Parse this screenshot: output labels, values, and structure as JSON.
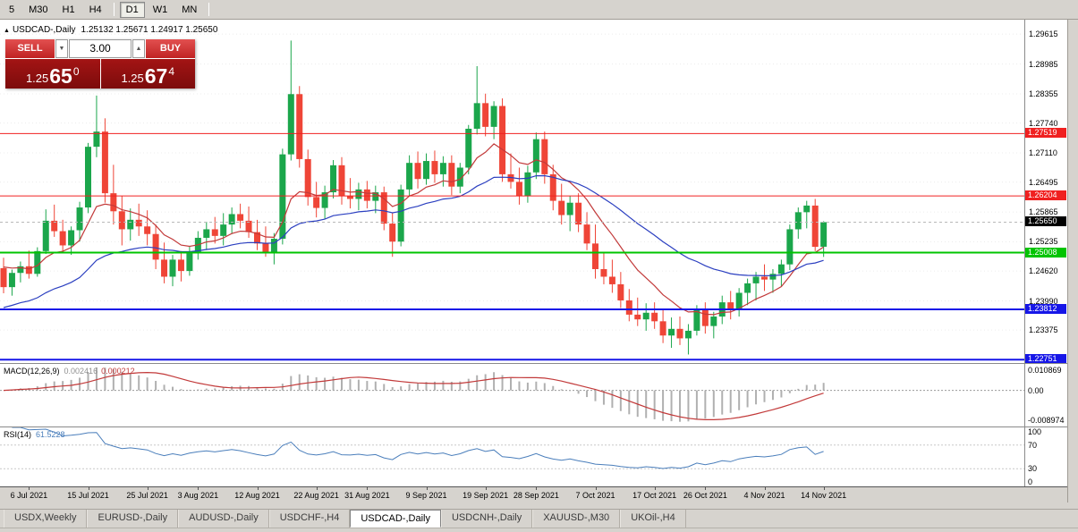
{
  "toolbar": {
    "items": [
      {
        "label": "5"
      },
      {
        "label": "M30"
      },
      {
        "label": "H1"
      },
      {
        "label": "H4"
      },
      {
        "sep": true
      },
      {
        "label": "D1",
        "active": true
      },
      {
        "label": "W1"
      },
      {
        "label": "MN"
      },
      {
        "sep": true
      }
    ]
  },
  "chart": {
    "title_arrow": "▲",
    "symbol_title": "USDCAD-,Daily",
    "ohlc": "1.25132 1.25671 1.24917 1.25650",
    "trade_panel": {
      "sell_label": "SELL",
      "buy_label": "BUY",
      "volume": "3.00",
      "spinner_down": "▼",
      "spinner_up": "▲",
      "sell_price": {
        "prefix": "1.25",
        "big": "65",
        "sup": "0"
      },
      "buy_price": {
        "prefix": "1.25",
        "big": "67",
        "sup": "4"
      }
    }
  },
  "chart_data": {
    "type": "candlestick",
    "symbol": "USDCAD-",
    "timeframe": "Daily",
    "ohlc_current": {
      "open": "1.25132",
      "high": "1.25671",
      "low": "1.24917",
      "close": "1.25650"
    },
    "price_top": 1.2992,
    "price_bottom": 1.2268,
    "colors": {
      "up": "#1ba64b",
      "down": "#ef4537"
    },
    "axis_ticks": [
      "1.29615",
      "1.28985",
      "1.28355",
      "1.27740",
      "1.27110",
      "1.26495",
      "1.25865",
      "1.25235",
      "1.24620",
      "1.23990",
      "1.23375"
    ],
    "levels": [
      {
        "price": 1.27519,
        "badge": "1.27519",
        "color": "#f02020",
        "width": 1
      },
      {
        "price": 1.26204,
        "badge": "1.26204",
        "color": "#f02020",
        "width": 1
      },
      {
        "price": 1.25008,
        "badge": "1.25008",
        "color": "#00c400",
        "width": 2
      },
      {
        "price": 1.23812,
        "badge": "1.23812",
        "color": "#1616e8",
        "width": 2
      },
      {
        "price": 1.22751,
        "badge": "1.22751",
        "color": "#1616e8",
        "width": 2
      }
    ],
    "current_price": "1.25650",
    "ma_fast": {
      "period": 10,
      "init": 1.248,
      "color": "#c23a3a"
    },
    "ma_slow": {
      "period": 30,
      "init": 1.2382,
      "color": "#2b3fc0"
    },
    "macd": {
      "label": "MACD(12,26,9)",
      "value1": "0.002416",
      "value2": "0.000212",
      "axis_top": "0.010869",
      "axis_zero": "0.00",
      "axis_bottom": "-0.008974",
      "histogram_color": "#b0b0b0",
      "signal_color": "#c23a3a"
    },
    "rsi": {
      "label": "RSI(14)",
      "value": "61.5228",
      "axis": [
        "100",
        "70",
        "30",
        "0"
      ],
      "levels": [
        70,
        30
      ],
      "color": "#4a7ebb"
    },
    "time_ticks": [
      {
        "i": 3,
        "label": "6 Jul 2021"
      },
      {
        "i": 10,
        "label": "15 Jul 2021"
      },
      {
        "i": 17,
        "label": "25 Jul 2021"
      },
      {
        "i": 23,
        "label": "3 Aug 2021"
      },
      {
        "i": 30,
        "label": "12 Aug 2021"
      },
      {
        "i": 37,
        "label": "22 Aug 2021"
      },
      {
        "i": 43,
        "label": "31 Aug 2021"
      },
      {
        "i": 50,
        "label": "9 Sep 2021"
      },
      {
        "i": 57,
        "label": "19 Sep 2021"
      },
      {
        "i": 63,
        "label": "28 Sep 2021"
      },
      {
        "i": 70,
        "label": "7 Oct 2021"
      },
      {
        "i": 77,
        "label": "17 Oct 2021"
      },
      {
        "i": 83,
        "label": "26 Oct 2021"
      },
      {
        "i": 90,
        "label": "4 Nov 2021"
      },
      {
        "i": 97,
        "label": "14 Nov 2021"
      }
    ],
    "candles": [
      [
        1.2468,
        1.249,
        1.2415,
        1.2428
      ],
      [
        1.2428,
        1.2465,
        1.241,
        1.2458
      ],
      [
        1.2458,
        1.2482,
        1.2438,
        1.2472
      ],
      [
        1.2472,
        1.2505,
        1.2446,
        1.2456
      ],
      [
        1.2456,
        1.2512,
        1.245,
        1.2504
      ],
      [
        1.2504,
        1.2592,
        1.2498,
        1.2568
      ],
      [
        1.2568,
        1.2602,
        1.2534,
        1.2546
      ],
      [
        1.2546,
        1.257,
        1.2502,
        1.2516
      ],
      [
        1.2516,
        1.2556,
        1.2496,
        1.2548
      ],
      [
        1.2548,
        1.2608,
        1.2524,
        1.2596
      ],
      [
        1.2596,
        1.2732,
        1.2584,
        1.2724
      ],
      [
        1.2724,
        1.2832,
        1.2702,
        1.2756
      ],
      [
        1.2756,
        1.2784,
        1.2606,
        1.2626
      ],
      [
        1.2626,
        1.2686,
        1.256,
        1.2588
      ],
      [
        1.2588,
        1.262,
        1.2516,
        1.255
      ],
      [
        1.255,
        1.2594,
        1.2526,
        1.257
      ],
      [
        1.257,
        1.2604,
        1.2536,
        1.2556
      ],
      [
        1.2556,
        1.259,
        1.2516,
        1.254
      ],
      [
        1.254,
        1.256,
        1.2466,
        1.2486
      ],
      [
        1.2486,
        1.2522,
        1.2436,
        1.245
      ],
      [
        1.245,
        1.2496,
        1.243,
        1.2486
      ],
      [
        1.2486,
        1.2504,
        1.244,
        1.2462
      ],
      [
        1.2462,
        1.2514,
        1.2452,
        1.2502
      ],
      [
        1.2502,
        1.2546,
        1.2486,
        1.2532
      ],
      [
        1.2532,
        1.2566,
        1.2506,
        1.255
      ],
      [
        1.255,
        1.2576,
        1.252,
        1.2536
      ],
      [
        1.2536,
        1.2584,
        1.2516,
        1.256
      ],
      [
        1.256,
        1.2596,
        1.254,
        1.2582
      ],
      [
        1.2582,
        1.2604,
        1.2552,
        1.2568
      ],
      [
        1.2568,
        1.2598,
        1.2532,
        1.2544
      ],
      [
        1.2544,
        1.257,
        1.2506,
        1.252
      ],
      [
        1.252,
        1.2556,
        1.2492,
        1.2502
      ],
      [
        1.2502,
        1.2542,
        1.2476,
        1.253
      ],
      [
        1.253,
        1.272,
        1.2518,
        1.2708
      ],
      [
        1.2708,
        1.2948,
        1.2695,
        1.2835
      ],
      [
        1.2835,
        1.2852,
        1.268,
        1.2698
      ],
      [
        1.2698,
        1.2718,
        1.26,
        1.2618
      ],
      [
        1.2618,
        1.265,
        1.2575,
        1.2595
      ],
      [
        1.2595,
        1.2642,
        1.2572,
        1.2628
      ],
      [
        1.2628,
        1.2696,
        1.2615,
        1.2685
      ],
      [
        1.2685,
        1.2702,
        1.2602,
        1.262
      ],
      [
        1.262,
        1.2658,
        1.2594,
        1.2614
      ],
      [
        1.2614,
        1.2648,
        1.259,
        1.2634
      ],
      [
        1.2634,
        1.2652,
        1.2594,
        1.261
      ],
      [
        1.261,
        1.2642,
        1.2584,
        1.2628
      ],
      [
        1.2628,
        1.264,
        1.2548,
        1.2562
      ],
      [
        1.2562,
        1.2584,
        1.2492,
        1.2524
      ],
      [
        1.2524,
        1.2644,
        1.2514,
        1.2634
      ],
      [
        1.2634,
        1.2706,
        1.262,
        1.269
      ],
      [
        1.269,
        1.2714,
        1.2636,
        1.2656
      ],
      [
        1.2656,
        1.271,
        1.2644,
        1.2694
      ],
      [
        1.2694,
        1.2716,
        1.2648,
        1.2666
      ],
      [
        1.2666,
        1.2704,
        1.264,
        1.269
      ],
      [
        1.269,
        1.2706,
        1.2622,
        1.264
      ],
      [
        1.264,
        1.269,
        1.2626,
        1.268
      ],
      [
        1.268,
        1.277,
        1.2666,
        1.2762
      ],
      [
        1.2762,
        1.2894,
        1.275,
        1.2816
      ],
      [
        1.2816,
        1.2836,
        1.2746,
        1.2766
      ],
      [
        1.2766,
        1.282,
        1.274,
        1.281
      ],
      [
        1.281,
        1.2826,
        1.265,
        1.2666
      ],
      [
        1.2666,
        1.271,
        1.2636,
        1.265
      ],
      [
        1.265,
        1.268,
        1.2602,
        1.262
      ],
      [
        1.262,
        1.2684,
        1.2606,
        1.267
      ],
      [
        1.267,
        1.2754,
        1.2656,
        1.274
      ],
      [
        1.274,
        1.2756,
        1.2646,
        1.2666
      ],
      [
        1.2666,
        1.2686,
        1.259,
        1.261
      ],
      [
        1.261,
        1.2646,
        1.256,
        1.258
      ],
      [
        1.258,
        1.262,
        1.2546,
        1.2606
      ],
      [
        1.2606,
        1.2626,
        1.2544,
        1.256
      ],
      [
        1.256,
        1.2586,
        1.2506,
        1.252
      ],
      [
        1.252,
        1.256,
        1.2446,
        1.2466
      ],
      [
        1.2466,
        1.25,
        1.2434,
        1.245
      ],
      [
        1.245,
        1.2486,
        1.2416,
        1.2434
      ],
      [
        1.2434,
        1.246,
        1.2384,
        1.24
      ],
      [
        1.24,
        1.2424,
        1.2356,
        1.237
      ],
      [
        1.237,
        1.2406,
        1.2346,
        1.236
      ],
      [
        1.236,
        1.2394,
        1.2336,
        1.2374
      ],
      [
        1.2374,
        1.2396,
        1.234,
        1.2356
      ],
      [
        1.2356,
        1.238,
        1.231,
        1.2326
      ],
      [
        1.2326,
        1.2364,
        1.23,
        1.234
      ],
      [
        1.234,
        1.2366,
        1.2306,
        1.232
      ],
      [
        1.232,
        1.235,
        1.2286,
        1.2336
      ],
      [
        1.2336,
        1.239,
        1.2326,
        1.238
      ],
      [
        1.238,
        1.2396,
        1.233,
        1.2346
      ],
      [
        1.2346,
        1.2376,
        1.232,
        1.2366
      ],
      [
        1.2366,
        1.241,
        1.235,
        1.2396
      ],
      [
        1.2396,
        1.242,
        1.236,
        1.238
      ],
      [
        1.238,
        1.2426,
        1.2366,
        1.2416
      ],
      [
        1.2416,
        1.2446,
        1.239,
        1.2436
      ],
      [
        1.2436,
        1.246,
        1.24,
        1.245
      ],
      [
        1.245,
        1.2476,
        1.242,
        1.2444
      ],
      [
        1.2444,
        1.2466,
        1.2416,
        1.2456
      ],
      [
        1.2456,
        1.2486,
        1.243,
        1.2476
      ],
      [
        1.2476,
        1.256,
        1.2464,
        1.255
      ],
      [
        1.255,
        1.2596,
        1.253,
        1.2586
      ],
      [
        1.2586,
        1.261,
        1.2552,
        1.26
      ],
      [
        1.26,
        1.2614,
        1.2504,
        1.2513
      ],
      [
        1.25132,
        1.25671,
        1.24917,
        1.2565
      ]
    ]
  },
  "tabs": [
    {
      "label": "USDX,Weekly"
    },
    {
      "label": "EURUSD-,Daily"
    },
    {
      "label": "AUDUSD-,Daily"
    },
    {
      "label": "USDCHF-,H4"
    },
    {
      "label": "USDCAD-,Daily",
      "active": true
    },
    {
      "label": "USDCNH-,Daily"
    },
    {
      "label": "XAUUSD-,M30"
    },
    {
      "label": "UKOil-,H4"
    }
  ]
}
